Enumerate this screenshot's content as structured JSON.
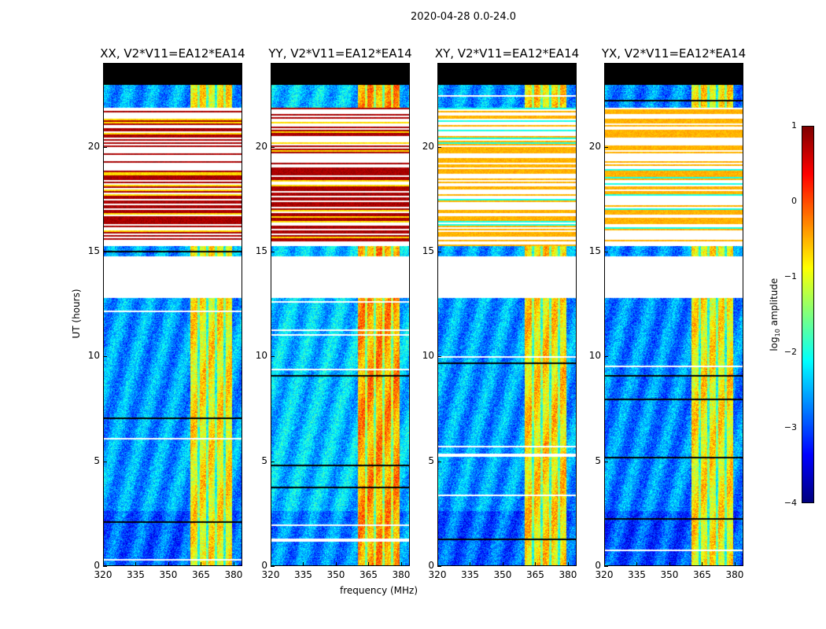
{
  "chart_data": {
    "type": "heatmap",
    "suptitle": "2020-04-28 0.0-24.0",
    "xlabel": "frequency (MHz)",
    "ylabel": "UT (hours)",
    "xlim": [
      320,
      384
    ],
    "ylim": [
      0,
      24
    ],
    "xticks": [
      "320",
      "335",
      "350",
      "365",
      "380"
    ],
    "xtick_values": [
      320,
      335,
      350,
      365,
      380
    ],
    "yticks": [
      "0",
      "5",
      "10",
      "15",
      "20"
    ],
    "ytick_values": [
      0,
      5,
      10,
      15,
      20
    ],
    "colorbar": {
      "label": "log10 amplitude",
      "label_main": "log",
      "label_sub": "10",
      "label_rest": " amplitude",
      "range": [
        -4,
        1
      ],
      "ticks": [
        "1",
        "0",
        "−1",
        "−2",
        "−3",
        "−4"
      ],
      "tick_values": [
        1,
        0,
        -1,
        -2,
        -3,
        -4
      ],
      "colormap": "jet"
    },
    "structure": {
      "bright_band_MHz": [
        360,
        379.5
      ],
      "flagged_hours": [
        [
          12.8,
          14.8
        ]
      ],
      "black_hours": [
        [
          23.0,
          24.0
        ]
      ],
      "striped_hours": [
        15.3,
        21.9
      ]
    },
    "panels": [
      {
        "title": "XX, V2*V11=EA12*EA14",
        "background_level": -2.6,
        "band_level": -0.8,
        "stripe_level": 0.8
      },
      {
        "title": "YY, V2*V11=EA12*EA14",
        "background_level": -2.4,
        "band_level": -0.4,
        "stripe_level": 0.8
      },
      {
        "title": "XY, V2*V11=EA12*EA14",
        "background_level": -2.6,
        "band_level": -0.7,
        "stripe_level": -0.5
      },
      {
        "title": "YX, V2*V11=EA12*EA14",
        "background_level": -2.7,
        "band_level": -0.8,
        "stripe_level": -0.5
      }
    ]
  }
}
